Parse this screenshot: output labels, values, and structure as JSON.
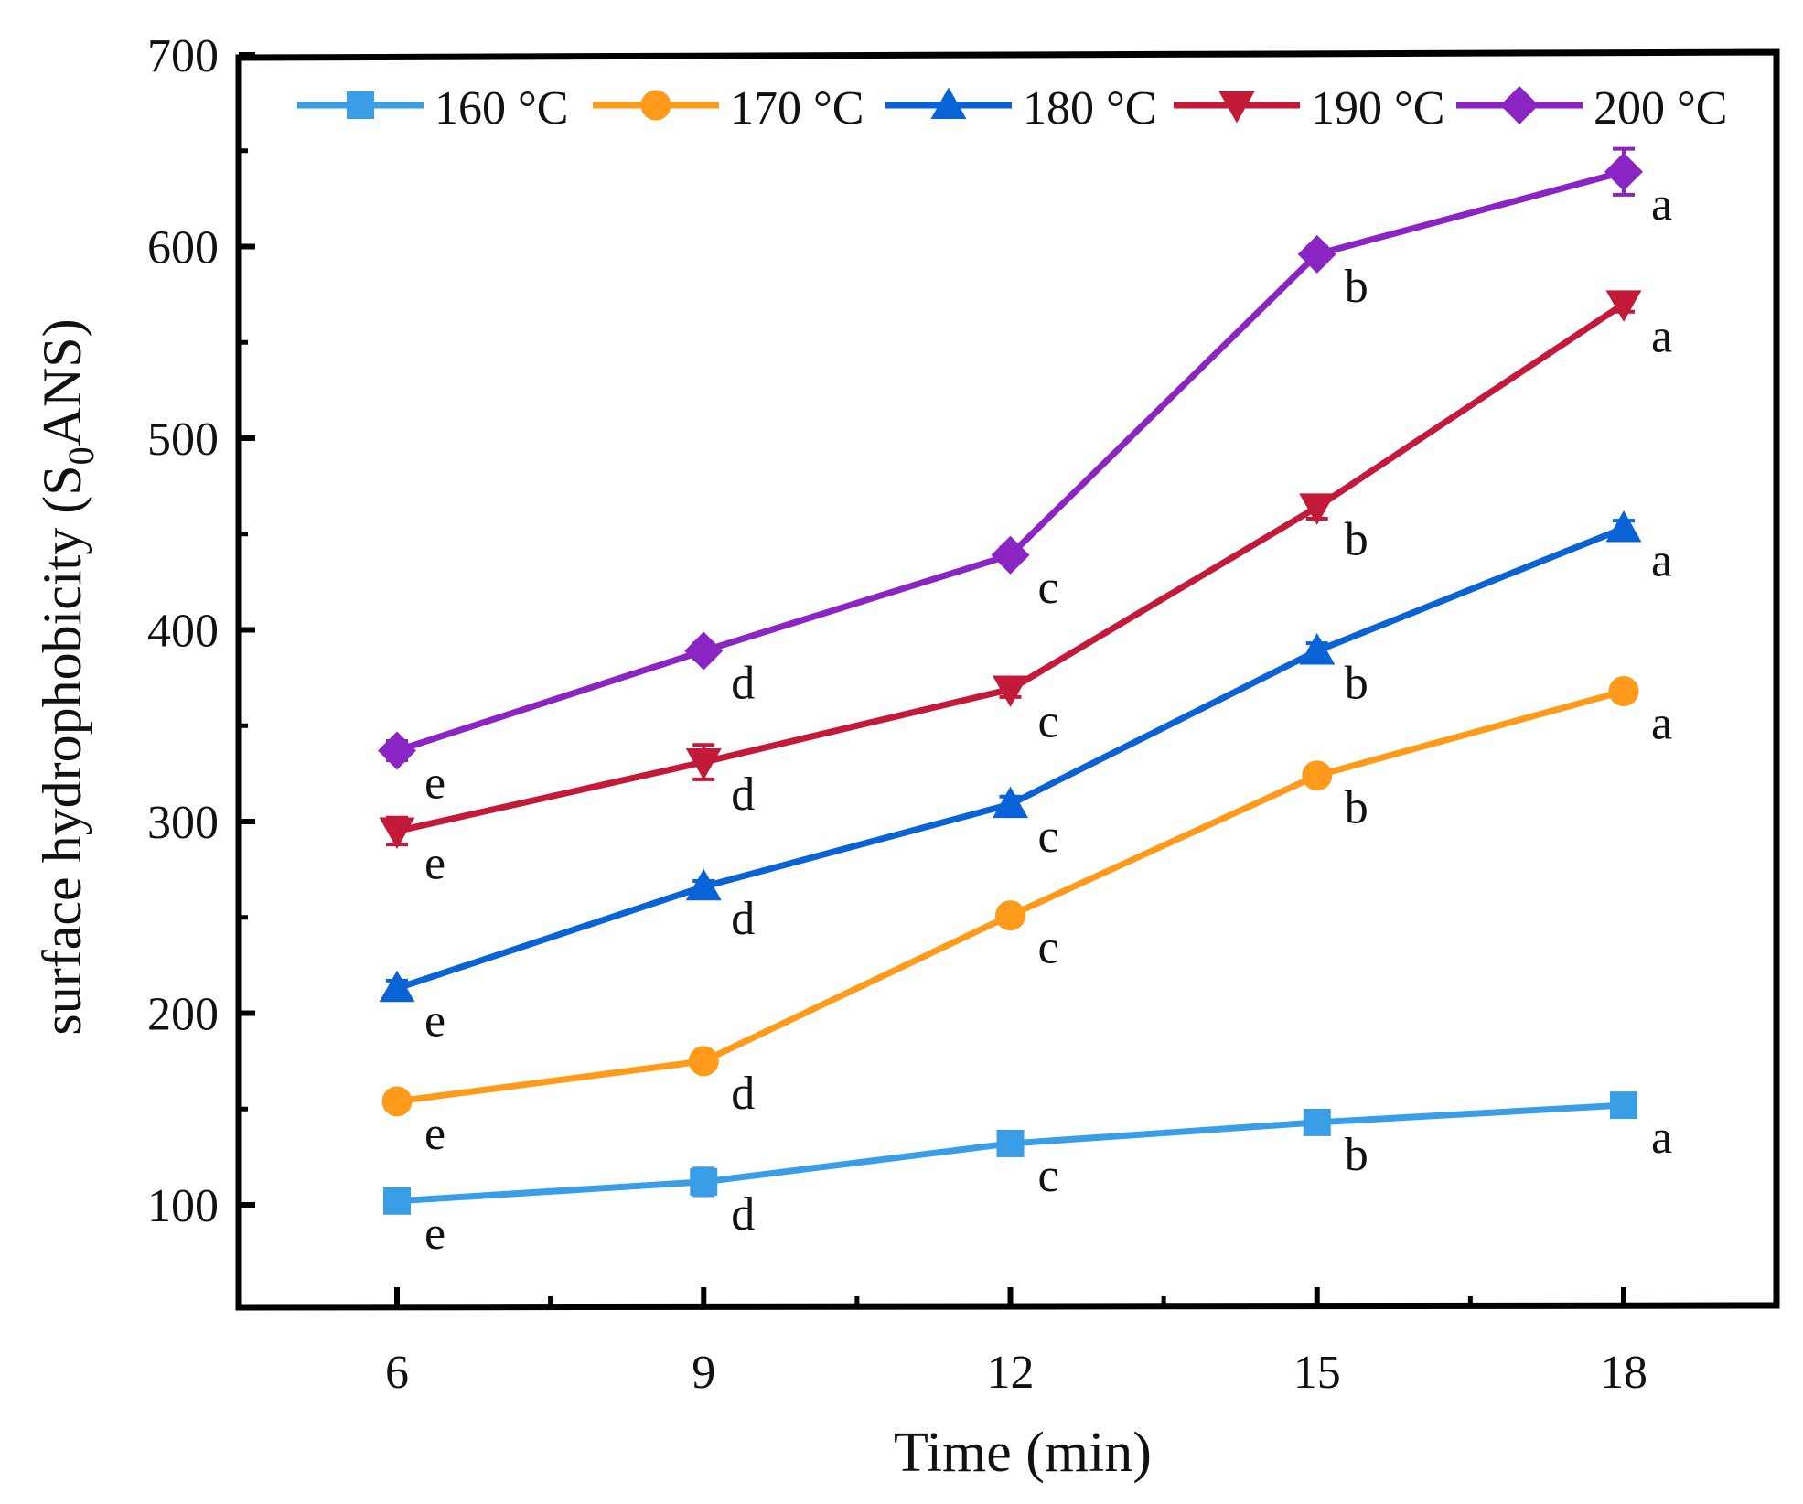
{
  "chart_data": {
    "type": "line",
    "title": "",
    "xlabel": "Time (min)",
    "ylabel_main": "surface hydrophobicity (S",
    "ylabel_sub": "0",
    "ylabel_end": "ANS)",
    "x": [
      6,
      9,
      12,
      15,
      18
    ],
    "xlim": [
      4.5,
      19.5
    ],
    "ylim": [
      50,
      700
    ],
    "xticks": [
      "6",
      "9",
      "12",
      "15",
      "18"
    ],
    "yticks": [
      "100",
      "200",
      "300",
      "400",
      "500",
      "600",
      "700"
    ],
    "legend_position": "top",
    "series": [
      {
        "name": "160 °C",
        "color": "#3a9ee6",
        "marker": "square",
        "values": [
          102,
          112,
          132,
          143,
          152
        ],
        "errors": [
          4,
          7,
          4,
          4,
          4
        ],
        "letters": [
          "e",
          "d",
          "c",
          "b",
          "a"
        ]
      },
      {
        "name": "170 °C",
        "color": "#ff9a1a",
        "marker": "circle",
        "values": [
          154,
          175,
          251,
          324,
          368
        ],
        "errors": [
          3,
          4,
          4,
          4,
          3
        ],
        "letters": [
          "e",
          "d",
          "c",
          "b",
          "a"
        ]
      },
      {
        "name": "180 °C",
        "color": "#0a63d6",
        "marker": "triangle-up",
        "values": [
          213,
          266,
          309,
          389,
          453
        ],
        "errors": [
          4,
          3,
          4,
          4,
          4
        ],
        "letters": [
          "e",
          "d",
          "c",
          "b",
          "a"
        ]
      },
      {
        "name": "190 °C",
        "color": "#c41a3a",
        "marker": "triangle-down",
        "values": [
          295,
          331,
          369,
          464,
          570
        ],
        "errors": [
          7,
          9,
          4,
          6,
          4
        ],
        "letters": [
          "e",
          "d",
          "c",
          "b",
          "a"
        ]
      },
      {
        "name": "200 °C",
        "color": "#8a24c2",
        "marker": "diamond",
        "values": [
          337,
          389,
          439,
          596,
          639
        ],
        "errors": [
          5,
          4,
          4,
          4,
          12
        ],
        "letters": [
          "e",
          "d",
          "c",
          "b",
          "a"
        ]
      }
    ]
  }
}
